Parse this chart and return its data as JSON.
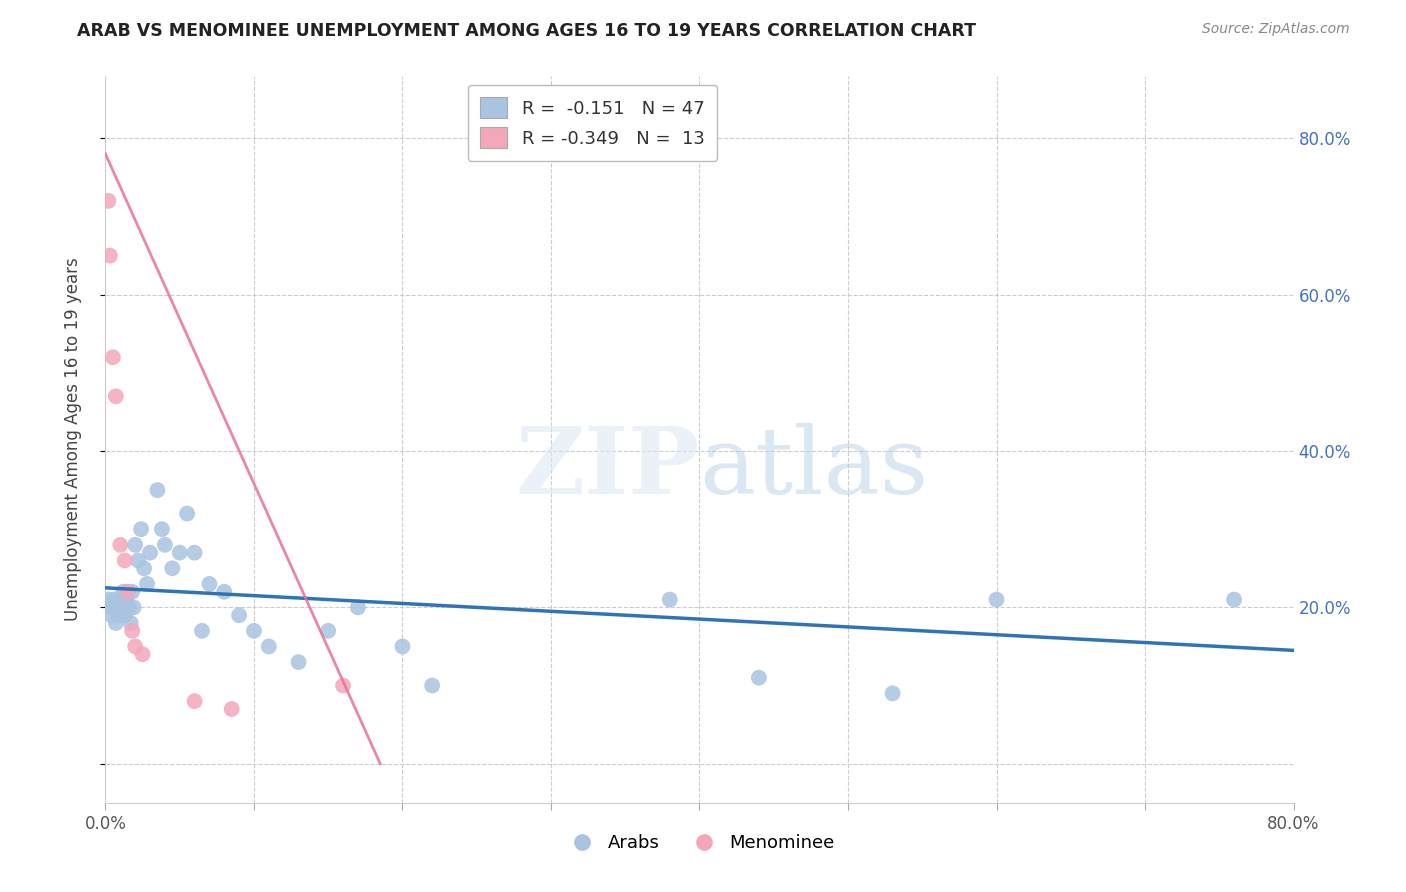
{
  "title": "ARAB VS MENOMINEE UNEMPLOYMENT AMONG AGES 16 TO 19 YEARS CORRELATION CHART",
  "source": "Source: ZipAtlas.com",
  "ylabel": "Unemployment Among Ages 16 to 19 years",
  "xlim": [
    0.0,
    0.8
  ],
  "ylim": [
    -0.05,
    0.88
  ],
  "xticks": [
    0.0,
    0.1,
    0.2,
    0.3,
    0.4,
    0.5,
    0.6,
    0.7,
    0.8
  ],
  "xticklabels": [
    "0.0%",
    "",
    "",
    "",
    "",
    "",
    "",
    "",
    "80.0%"
  ],
  "yticks": [
    0.0,
    0.2,
    0.4,
    0.6,
    0.8
  ],
  "yticklabels": [
    "",
    "20.0%",
    "40.0%",
    "60.0%",
    "80.0%"
  ],
  "arab_color": "#a8c4e0",
  "menominee_color": "#f4a7b9",
  "arab_line_color": "#2E75B6",
  "menominee_line_color": "#E8719A",
  "background_color": "#ffffff",
  "grid_color": "#cccccc",
  "legend_r_arab": "-0.151",
  "legend_n_arab": "47",
  "legend_r_menominee": "-0.349",
  "legend_n_menominee": "13",
  "arab_x": [
    0.002,
    0.003,
    0.004,
    0.005,
    0.006,
    0.007,
    0.008,
    0.009,
    0.01,
    0.011,
    0.012,
    0.013,
    0.014,
    0.015,
    0.016,
    0.017,
    0.018,
    0.019,
    0.02,
    0.022,
    0.024,
    0.026,
    0.028,
    0.03,
    0.035,
    0.038,
    0.04,
    0.045,
    0.05,
    0.055,
    0.06,
    0.065,
    0.07,
    0.08,
    0.09,
    0.1,
    0.11,
    0.13,
    0.15,
    0.17,
    0.2,
    0.22,
    0.38,
    0.44,
    0.53,
    0.6,
    0.76
  ],
  "arab_y": [
    0.21,
    0.2,
    0.19,
    0.2,
    0.21,
    0.18,
    0.2,
    0.19,
    0.2,
    0.21,
    0.22,
    0.19,
    0.21,
    0.22,
    0.2,
    0.18,
    0.22,
    0.2,
    0.28,
    0.26,
    0.3,
    0.25,
    0.23,
    0.27,
    0.35,
    0.3,
    0.28,
    0.25,
    0.27,
    0.32,
    0.27,
    0.17,
    0.23,
    0.22,
    0.19,
    0.17,
    0.15,
    0.13,
    0.17,
    0.2,
    0.15,
    0.1,
    0.21,
    0.11,
    0.09,
    0.21,
    0.21
  ],
  "menominee_x": [
    0.002,
    0.003,
    0.005,
    0.007,
    0.01,
    0.013,
    0.015,
    0.018,
    0.02,
    0.025,
    0.06,
    0.085,
    0.16
  ],
  "menominee_y": [
    0.72,
    0.65,
    0.52,
    0.47,
    0.28,
    0.26,
    0.22,
    0.17,
    0.15,
    0.14,
    0.08,
    0.07,
    0.1
  ],
  "arab_line_x": [
    0.0,
    0.8
  ],
  "arab_line_y": [
    0.225,
    0.145
  ],
  "menominee_line_x": [
    0.0,
    0.185
  ],
  "menominee_line_y": [
    0.78,
    0.0
  ]
}
